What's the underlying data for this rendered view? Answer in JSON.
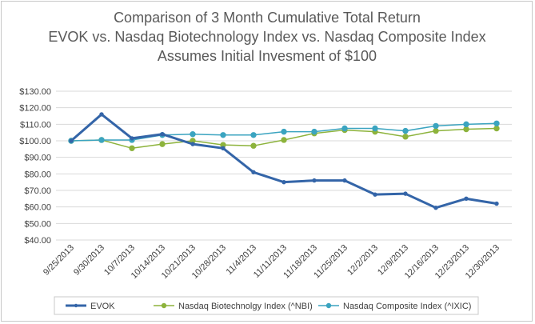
{
  "chart_data": {
    "type": "line",
    "title": [
      "Comparison of 3 Month Cumulative Total Return",
      "EVOK vs. Nasdaq Biotechnology Index vs. Nasdaq Composite Index",
      "Assumes Initial Invesment of $100"
    ],
    "categories": [
      "9/25/2013",
      "9/30/2013",
      "10/7/2013",
      "10/14/2013",
      "10/21/2013",
      "10/28/2013",
      "11/4/2013",
      "11/11/2013",
      "11/18/2013",
      "11/25/2013",
      "12/2/2013",
      "12/9/2013",
      "12/16/2013",
      "12/23/2013",
      "12/30/2013"
    ],
    "y_ticks": [
      "$40.00",
      "$50.00",
      "$60.00",
      "$70.00",
      "$80.00",
      "$90.00",
      "$100.00",
      "$110.00",
      "$120.00",
      "$130.00"
    ],
    "ylim": [
      40,
      130
    ],
    "ystep": 10,
    "grid": true,
    "legend_position": "bottom",
    "series": [
      {
        "name": "EVOK",
        "color": "#3465a8",
        "width": 3,
        "values": [
          100,
          116,
          101.5,
          104,
          98,
          95.5,
          81,
          75,
          76,
          76,
          67.5,
          68,
          59.5,
          65,
          62
        ]
      },
      {
        "name": "Nasdaq Biotechnolgy Index (^NBI)",
        "color": "#8db33c",
        "width": 1.5,
        "values": [
          100,
          100.5,
          95.5,
          98,
          100,
          97.5,
          97,
          100.5,
          104.5,
          106.5,
          105.5,
          102.5,
          106,
          107,
          107.5
        ]
      },
      {
        "name": "Nasdaq Composite Index (^IXIC)",
        "color": "#3ba4c0",
        "width": 1.5,
        "values": [
          100,
          100.5,
          100.5,
          103.5,
          104,
          103.5,
          103.5,
          105.5,
          105.5,
          107.5,
          107.5,
          106,
          109,
          110,
          110.5
        ]
      }
    ]
  }
}
